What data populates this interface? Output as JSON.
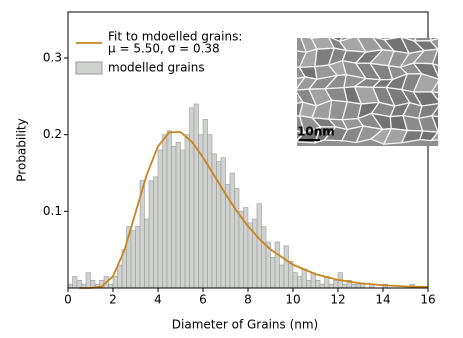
{
  "chart_data": {
    "type": "histogram",
    "xlabel": "Diameter of Grains (nm)",
    "ylabel": "Probability",
    "xlim": [
      0,
      16
    ],
    "ylim": [
      0,
      0.36
    ],
    "xticks": [
      0,
      2,
      4,
      6,
      8,
      10,
      12,
      14,
      16
    ],
    "yticks": [
      0.1,
      0.2,
      0.3
    ],
    "name": "modelled grains",
    "color": "#cfd2cf",
    "edgecolor": "#9a9a9a",
    "bins": [
      0,
      0.2,
      0.4,
      0.6,
      0.8,
      1,
      1.2,
      1.4,
      1.6,
      1.8,
      2,
      2.2,
      2.4,
      2.6,
      2.8,
      3,
      3.2,
      3.4,
      3.6,
      3.8,
      4,
      4.2,
      4.4,
      4.6,
      4.8,
      5,
      5.2,
      5.4,
      5.6,
      5.8,
      6,
      6.2,
      6.4,
      6.6,
      6.8,
      7,
      7.2,
      7.4,
      7.6,
      7.8,
      8,
      8.2,
      8.4,
      8.6,
      8.8,
      9,
      9.2,
      9.4,
      9.6,
      9.8,
      10,
      10.2,
      10.4,
      10.6,
      10.8,
      11,
      11.2,
      11.4,
      11.6,
      11.8,
      12,
      12.2,
      12.4,
      12.6,
      12.8,
      13,
      13.2,
      13.4,
      13.6,
      13.8,
      14,
      14.2,
      14.4,
      14.6,
      14.8,
      15,
      15.2,
      15.4,
      15.6,
      15.8,
      16
    ],
    "values": [
      0.005,
      0.015,
      0.01,
      0.005,
      0.02,
      0.01,
      0.005,
      0.01,
      0.015,
      0.005,
      0.015,
      0.03,
      0.05,
      0.08,
      0.075,
      0.08,
      0.14,
      0.09,
      0.14,
      0.145,
      0.18,
      0.2,
      0.205,
      0.185,
      0.19,
      0.18,
      0.2,
      0.235,
      0.24,
      0.2,
      0.22,
      0.2,
      0.175,
      0.165,
      0.17,
      0.135,
      0.15,
      0.13,
      0.1,
      0.105,
      0.085,
      0.09,
      0.11,
      0.08,
      0.06,
      0.04,
      0.06,
      0.03,
      0.055,
      0.035,
      0.02,
      0.015,
      0.025,
      0.01,
      0.02,
      0.01,
      0.005,
      0.015,
      0.005,
      0.01,
      0.02,
      0.005,
      0.01,
      0.005,
      0.005,
      0.005,
      0,
      0.005,
      0,
      0,
      0.005,
      0,
      0,
      0,
      0,
      0,
      0.005,
      0,
      0,
      0
    ],
    "fit": {
      "name": "Fit to mdoelled grains:",
      "params": "μ = 5.50, σ = 0.38",
      "color": "#c8861e",
      "x": [
        0.5,
        1,
        1.5,
        2,
        2.5,
        3,
        3.5,
        4,
        4.5,
        5,
        5.5,
        6,
        6.5,
        7,
        7.5,
        8,
        8.5,
        9,
        10,
        11,
        12,
        13,
        14,
        15,
        16
      ],
      "y": [
        0,
        0,
        0.002,
        0.0152,
        0.0488,
        0.0981,
        0.1479,
        0.1848,
        0.203,
        0.2035,
        0.1909,
        0.1704,
        0.1466,
        0.1226,
        0.1003,
        0.0807,
        0.0641,
        0.0504,
        0.0304,
        0.0181,
        0.0106,
        0.0062,
        0.0036,
        0.0021,
        0.0013
      ]
    },
    "inset": {
      "scale_label": "10nm"
    }
  }
}
